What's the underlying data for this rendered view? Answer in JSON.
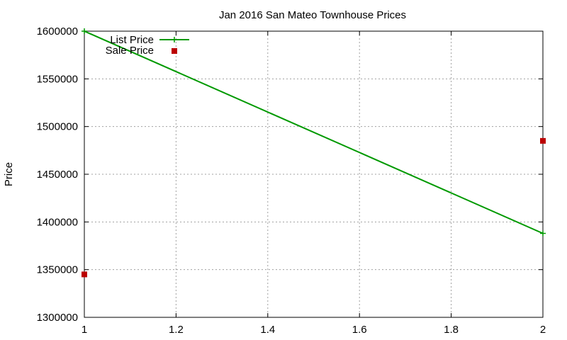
{
  "chart_data": {
    "type": "line",
    "title": "Jan 2016 San Mateo Townhouse Prices",
    "xlabel": "",
    "ylabel": "Price",
    "xlim": [
      1,
      2
    ],
    "ylim": [
      1300000,
      1600000
    ],
    "x_ticks": [
      1,
      1.2,
      1.4,
      1.6,
      1.8,
      2
    ],
    "x_tick_labels": [
      "1",
      "1.2",
      "1.4",
      "1.6",
      "1.8",
      "2"
    ],
    "y_ticks": [
      1300000,
      1350000,
      1400000,
      1450000,
      1500000,
      1550000,
      1600000
    ],
    "y_tick_labels": [
      "1300000",
      "1350000",
      "1400000",
      "1450000",
      "1500000",
      "1550000",
      "1600000"
    ],
    "grid": true,
    "legend_position": "top-left",
    "series": [
      {
        "name": "List Price",
        "style": "line+cross",
        "color": "#009900",
        "points": [
          {
            "x": 1,
            "y": 1600000
          },
          {
            "x": 2,
            "y": 1388000
          }
        ]
      },
      {
        "name": "Sale Price",
        "style": "square",
        "color": "#bb0000",
        "points": [
          {
            "x": 1,
            "y": 1345000
          },
          {
            "x": 2,
            "y": 1485000
          }
        ]
      }
    ]
  }
}
